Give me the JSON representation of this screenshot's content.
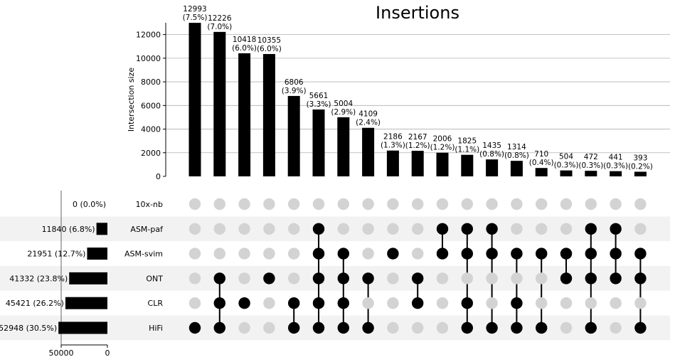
{
  "chart_data": {
    "type": "upset",
    "title": "Insertions",
    "ylabel": "Intersection size",
    "ylim": [
      0,
      13000
    ],
    "yticks": [
      0,
      2000,
      4000,
      6000,
      8000,
      10000,
      12000
    ],
    "grid": true,
    "sets": [
      {
        "name": "10x-nb",
        "size": 0,
        "size_label": "0 (0.0%)"
      },
      {
        "name": "ASM-paf",
        "size": 11840,
        "size_label": "11840 (6.8%)"
      },
      {
        "name": "ASM-svim",
        "size": 21951,
        "size_label": "21951 (12.7%)"
      },
      {
        "name": "ONT",
        "size": 41332,
        "size_label": "41332 (23.8%)"
      },
      {
        "name": "CLR",
        "size": 45421,
        "size_label": "45421 (26.2%)"
      },
      {
        "name": "HiFi",
        "size": 52948,
        "size_label": "52948 (30.5%)"
      }
    ],
    "set_axis": {
      "xlim": [
        0,
        50000
      ],
      "ticks": [
        50000,
        0
      ]
    },
    "intersections": [
      {
        "value": 12993,
        "label": "12993",
        "pct": "(7.5%)",
        "members": [
          "HiFi"
        ]
      },
      {
        "value": 12226,
        "label": "12226",
        "pct": "(7.0%)",
        "members": [
          "ONT",
          "CLR",
          "HiFi"
        ]
      },
      {
        "value": 10418,
        "label": "10418",
        "pct": "(6.0%)",
        "members": [
          "CLR"
        ]
      },
      {
        "value": 10355,
        "label": "10355",
        "pct": "(6.0%)",
        "members": [
          "ONT"
        ]
      },
      {
        "value": 6806,
        "label": "6806",
        "pct": "(3.9%)",
        "members": [
          "CLR",
          "HiFi"
        ]
      },
      {
        "value": 5661,
        "label": "5661",
        "pct": "(3.3%)",
        "members": [
          "ASM-paf",
          "ASM-svim",
          "ONT",
          "CLR",
          "HiFi"
        ]
      },
      {
        "value": 5004,
        "label": "5004",
        "pct": "(2.9%)",
        "members": [
          "ASM-svim",
          "ONT",
          "CLR",
          "HiFi"
        ]
      },
      {
        "value": 4109,
        "label": "4109",
        "pct": "(2.4%)",
        "members": [
          "ONT",
          "HiFi"
        ]
      },
      {
        "value": 2186,
        "label": "2186",
        "pct": "(1.3%)",
        "members": [
          "ASM-svim"
        ]
      },
      {
        "value": 2167,
        "label": "2167",
        "pct": "(1.2%)",
        "members": [
          "ONT",
          "CLR"
        ]
      },
      {
        "value": 2006,
        "label": "2006",
        "pct": "(1.2%)",
        "members": [
          "ASM-paf",
          "ASM-svim"
        ]
      },
      {
        "value": 1825,
        "label": "1825",
        "pct": "(1.1%)",
        "members": [
          "ASM-paf",
          "ASM-svim",
          "CLR",
          "HiFi"
        ]
      },
      {
        "value": 1435,
        "label": "1435",
        "pct": "(0.8%)",
        "members": [
          "ASM-paf",
          "ASM-svim",
          "HiFi"
        ]
      },
      {
        "value": 1314,
        "label": "1314",
        "pct": "(0.8%)",
        "members": [
          "ASM-svim",
          "CLR",
          "HiFi"
        ]
      },
      {
        "value": 710,
        "label": "710",
        "pct": "(0.4%)",
        "members": [
          "ASM-svim",
          "HiFi"
        ]
      },
      {
        "value": 504,
        "label": "504",
        "pct": "(0.3%)",
        "members": [
          "ASM-svim",
          "ONT"
        ]
      },
      {
        "value": 472,
        "label": "472",
        "pct": "(0.3%)",
        "members": [
          "ASM-paf",
          "ASM-svim",
          "ONT",
          "HiFi"
        ]
      },
      {
        "value": 441,
        "label": "441",
        "pct": "(0.3%)",
        "members": [
          "ASM-paf",
          "ASM-svim",
          "ONT"
        ]
      },
      {
        "value": 393,
        "label": "393",
        "pct": "(0.2%)",
        "members": [
          "ASM-svim",
          "ONT",
          "HiFi"
        ]
      }
    ],
    "colors": {
      "bar": "#000000",
      "dot_active": "#000000",
      "dot_inactive": "#d3d3d3",
      "stripe": "#f2f2f2",
      "grid": "#b0b0b0"
    }
  }
}
